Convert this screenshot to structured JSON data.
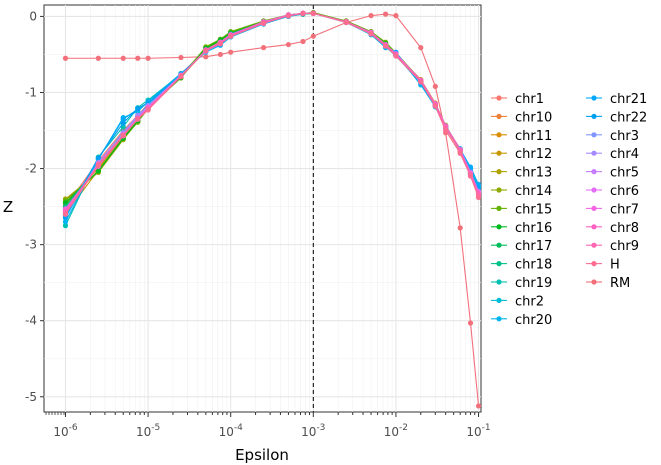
{
  "chart_data": {
    "type": "line",
    "xlabel": "Epsilon",
    "ylabel": "Z",
    "xscale": "log10",
    "xlim": [
      1e-06,
      0.1
    ],
    "ylim": [
      -5.2,
      0.15
    ],
    "grid": true,
    "legend_position": "right",
    "vline": {
      "x": 0.001,
      "style": "dashed"
    },
    "x_ticks": [
      {
        "value": 1e-06,
        "label": "10^-6"
      },
      {
        "value": 1e-05,
        "label": "10^-5"
      },
      {
        "value": 0.0001,
        "label": "10^-4"
      },
      {
        "value": 0.001,
        "label": "10^-3"
      },
      {
        "value": 0.01,
        "label": "10^-2"
      },
      {
        "value": 0.1,
        "label": "10^-1"
      }
    ],
    "y_ticks": [
      0,
      -1,
      -2,
      -3,
      -4,
      -5
    ],
    "x": [
      1e-06,
      2.5e-06,
      5e-06,
      7.5e-06,
      1e-05,
      2.5e-05,
      5e-05,
      7.5e-05,
      0.0001,
      0.00025,
      0.0005,
      0.00075,
      0.001,
      0.0025,
      0.005,
      0.0075,
      0.01,
      0.02,
      0.03,
      0.04,
      0.06,
      0.08,
      0.1
    ],
    "series": [
      {
        "name": "chr1",
        "color": "#F8766D",
        "values": [
          -2.5,
          -1.9,
          -1.5,
          -1.3,
          -1.15,
          -0.75,
          -0.45,
          -0.35,
          -0.25,
          -0.08,
          0.01,
          0.04,
          0.04,
          -0.07,
          -0.22,
          -0.38,
          -0.5,
          -0.84,
          -1.15,
          -1.45,
          -1.75,
          -2.05,
          -2.28
        ]
      },
      {
        "name": "chr10",
        "color": "#EC8239",
        "values": [
          -2.55,
          -1.95,
          -1.55,
          -1.35,
          -1.18,
          -0.78,
          -0.46,
          -0.36,
          -0.26,
          -0.09,
          0.0,
          0.03,
          0.04,
          -0.07,
          -0.23,
          -0.39,
          -0.51,
          -0.85,
          -1.16,
          -1.46,
          -1.76,
          -2.06,
          -2.3
        ]
      },
      {
        "name": "chr11",
        "color": "#DB8E00",
        "values": [
          -2.45,
          -2.0,
          -1.58,
          -1.36,
          -1.2,
          -0.8,
          -0.44,
          -0.34,
          -0.24,
          -0.07,
          0.01,
          0.04,
          0.04,
          -0.06,
          -0.21,
          -0.37,
          -0.49,
          -0.83,
          -1.14,
          -1.44,
          -1.74,
          -2.04,
          -2.29
        ]
      },
      {
        "name": "chr12",
        "color": "#C79800",
        "values": [
          -2.6,
          -2.02,
          -1.6,
          -1.38,
          -1.21,
          -0.79,
          -0.43,
          -0.33,
          -0.23,
          -0.08,
          0.02,
          0.04,
          0.05,
          -0.07,
          -0.22,
          -0.38,
          -0.5,
          -0.86,
          -1.17,
          -1.47,
          -1.77,
          -2.07,
          -2.31
        ]
      },
      {
        "name": "chr13",
        "color": "#AEA200",
        "values": [
          -2.4,
          -2.05,
          -1.62,
          -1.38,
          -1.22,
          -0.8,
          -0.42,
          -0.32,
          -0.22,
          -0.07,
          0.01,
          0.03,
          0.04,
          -0.06,
          -0.2,
          -0.36,
          -0.48,
          -0.84,
          -1.15,
          -1.45,
          -1.75,
          -2.05,
          -2.32
        ]
      },
      {
        "name": "chr14",
        "color": "#8FAA00",
        "values": [
          -2.48,
          -1.98,
          -1.56,
          -1.37,
          -1.19,
          -0.78,
          -0.41,
          -0.31,
          -0.21,
          -0.06,
          0.02,
          0.04,
          0.04,
          -0.06,
          -0.21,
          -0.35,
          -0.49,
          -0.85,
          -1.16,
          -1.44,
          -1.78,
          -2.08,
          -2.3
        ]
      },
      {
        "name": "chr15",
        "color": "#64B200",
        "values": [
          -2.42,
          -2.04,
          -1.61,
          -1.39,
          -1.2,
          -0.81,
          -0.4,
          -0.3,
          -0.2,
          -0.06,
          0.02,
          0.04,
          0.05,
          -0.06,
          -0.2,
          -0.34,
          -0.48,
          -0.84,
          -1.15,
          -1.43,
          -1.76,
          -2.06,
          -2.29
        ]
      },
      {
        "name": "chr16",
        "color": "#00B81F",
        "values": [
          -2.45,
          -2.03,
          -1.6,
          -1.37,
          -1.21,
          -0.8,
          -0.42,
          -0.31,
          -0.22,
          -0.07,
          0.01,
          0.03,
          0.04,
          -0.07,
          -0.22,
          -0.36,
          -0.5,
          -0.85,
          -1.16,
          -1.45,
          -1.77,
          -2.07,
          -2.31
        ]
      },
      {
        "name": "chr17",
        "color": "#00BD5C",
        "values": [
          -2.52,
          -1.97,
          -1.57,
          -1.34,
          -1.18,
          -0.79,
          -0.45,
          -0.34,
          -0.24,
          -0.08,
          0.01,
          0.04,
          0.04,
          -0.07,
          -0.22,
          -0.38,
          -0.5,
          -0.85,
          -1.16,
          -1.45,
          -1.75,
          -2.05,
          -2.3
        ]
      },
      {
        "name": "chr18",
        "color": "#00C08B",
        "values": [
          -2.5,
          -1.96,
          -1.55,
          -1.33,
          -1.17,
          -0.78,
          -0.44,
          -0.34,
          -0.23,
          -0.08,
          0.02,
          0.04,
          0.04,
          -0.07,
          -0.21,
          -0.37,
          -0.51,
          -0.86,
          -1.17,
          -1.46,
          -1.76,
          -2.06,
          -2.3
        ]
      },
      {
        "name": "chr19",
        "color": "#00C0B2",
        "values": [
          -2.75,
          -1.85,
          -1.45,
          -1.2,
          -1.1,
          -0.76,
          -0.46,
          -0.37,
          -0.26,
          -0.09,
          0.01,
          0.04,
          0.04,
          -0.07,
          -0.24,
          -0.4,
          -0.52,
          -0.87,
          -1.18,
          -1.46,
          -1.76,
          -2.03,
          -2.24
        ]
      },
      {
        "name": "chr2",
        "color": "#00BCD4",
        "values": [
          -2.55,
          -1.93,
          -1.52,
          -1.31,
          -1.16,
          -0.77,
          -0.45,
          -0.35,
          -0.25,
          -0.08,
          0.01,
          0.04,
          0.04,
          -0.07,
          -0.22,
          -0.38,
          -0.5,
          -0.85,
          -1.16,
          -1.45,
          -1.75,
          -2.05,
          -2.3
        ]
      },
      {
        "name": "chr20",
        "color": "#00B5EE",
        "values": [
          -2.7,
          -1.88,
          -1.33,
          -1.25,
          -1.12,
          -0.75,
          -0.47,
          -0.38,
          -0.27,
          -0.1,
          0.0,
          0.03,
          0.04,
          -0.08,
          -0.24,
          -0.41,
          -0.49,
          -0.9,
          -1.19,
          -1.47,
          -1.74,
          -2.0,
          -2.22
        ]
      },
      {
        "name": "chr21",
        "color": "#00A9FF",
        "values": [
          -2.65,
          -1.87,
          -1.35,
          -1.22,
          -1.13,
          -0.76,
          -0.46,
          -0.37,
          -0.26,
          -0.09,
          0.01,
          0.04,
          0.04,
          -0.07,
          -0.23,
          -0.4,
          -0.47,
          -0.88,
          -1.18,
          -1.46,
          -1.75,
          -1.98,
          -2.21
        ]
      },
      {
        "name": "chr22",
        "color": "#00A0F0",
        "values": [
          -2.62,
          -1.86,
          -1.4,
          -1.21,
          -1.14,
          -0.77,
          -0.46,
          -0.36,
          -0.26,
          -0.09,
          0.01,
          0.04,
          0.04,
          -0.07,
          -0.23,
          -0.39,
          -0.5,
          -0.86,
          -1.17,
          -1.45,
          -1.76,
          -2.04,
          -2.27
        ]
      },
      {
        "name": "chr3",
        "color": "#7F96FF",
        "values": [
          -2.58,
          -1.94,
          -1.54,
          -1.32,
          -1.17,
          -0.78,
          -0.45,
          -0.35,
          -0.25,
          -0.08,
          0.01,
          0.04,
          0.04,
          -0.07,
          -0.22,
          -0.38,
          -0.5,
          -0.85,
          -1.16,
          -1.45,
          -1.75,
          -2.05,
          -2.3
        ]
      },
      {
        "name": "chr4",
        "color": "#A58AFF",
        "values": [
          -2.6,
          -1.92,
          -1.53,
          -1.3,
          -1.18,
          -0.77,
          -0.46,
          -0.36,
          -0.26,
          -0.09,
          0.01,
          0.04,
          0.04,
          -0.07,
          -0.23,
          -0.39,
          -0.51,
          -0.86,
          -1.17,
          -1.46,
          -1.76,
          -2.06,
          -2.31
        ]
      },
      {
        "name": "chr5",
        "color": "#C77CFF",
        "values": [
          -2.57,
          -1.95,
          -1.55,
          -1.33,
          -1.19,
          -0.78,
          -0.45,
          -0.35,
          -0.25,
          -0.08,
          0.01,
          0.04,
          0.04,
          -0.07,
          -0.22,
          -0.38,
          -0.5,
          -0.85,
          -1.16,
          -1.45,
          -1.75,
          -2.05,
          -2.3
        ]
      },
      {
        "name": "chr6",
        "color": "#E36EF6",
        "values": [
          -2.55,
          -1.96,
          -1.56,
          -1.34,
          -1.2,
          -0.79,
          -0.44,
          -0.34,
          -0.24,
          -0.08,
          0.02,
          0.04,
          0.04,
          -0.07,
          -0.22,
          -0.38,
          -0.5,
          -0.84,
          -1.15,
          -1.44,
          -1.75,
          -2.06,
          -2.32
        ]
      },
      {
        "name": "chr7",
        "color": "#F564E3",
        "values": [
          -2.53,
          -1.97,
          -1.57,
          -1.35,
          -1.21,
          -0.79,
          -0.44,
          -0.34,
          -0.24,
          -0.07,
          0.02,
          0.04,
          0.04,
          -0.07,
          -0.21,
          -0.37,
          -0.49,
          -0.84,
          -1.15,
          -1.44,
          -1.76,
          -2.08,
          -2.33
        ]
      },
      {
        "name": "chr8",
        "color": "#FF61C3",
        "values": [
          -2.56,
          -1.95,
          -1.56,
          -1.34,
          -1.2,
          -0.78,
          -0.45,
          -0.35,
          -0.25,
          -0.08,
          0.01,
          0.04,
          0.04,
          -0.07,
          -0.22,
          -0.38,
          -0.5,
          -0.85,
          -1.16,
          -1.45,
          -1.76,
          -2.07,
          -2.32
        ]
      },
      {
        "name": "chr9",
        "color": "#FF64B0",
        "values": [
          -2.58,
          -1.94,
          -1.56,
          -1.34,
          -1.22,
          -0.78,
          -0.45,
          -0.35,
          -0.26,
          -0.09,
          0.01,
          0.04,
          0.04,
          -0.07,
          -0.22,
          -0.39,
          -0.51,
          -0.86,
          -1.17,
          -1.46,
          -1.77,
          -2.08,
          -2.35
        ]
      },
      {
        "name": "H",
        "color": "#FF6C91",
        "values": [
          -2.6,
          -1.96,
          -1.57,
          -1.35,
          -1.23,
          -0.79,
          -0.45,
          -0.36,
          -0.26,
          -0.09,
          0.01,
          0.04,
          0.04,
          -0.08,
          -0.23,
          -0.39,
          -0.52,
          -0.86,
          -1.18,
          -1.5,
          -1.8,
          -2.1,
          -2.38
        ]
      }
    ],
    "series_rm": {
      "name": "RM",
      "color": "#F2707A",
      "x": [
        1e-06,
        2.5e-06,
        5e-06,
        7.5e-06,
        1e-05,
        2.5e-05,
        5e-05,
        7.5e-05,
        0.0001,
        0.00025,
        0.0005,
        0.00075,
        0.001,
        0.0025,
        0.005,
        0.0075,
        0.01,
        0.02,
        0.03,
        0.04,
        0.06,
        0.08,
        0.1
      ],
      "values": [
        -0.55,
        -0.55,
        -0.55,
        -0.55,
        -0.55,
        -0.54,
        -0.53,
        -0.5,
        -0.47,
        -0.41,
        -0.37,
        -0.33,
        -0.26,
        -0.08,
        0.01,
        0.03,
        0.01,
        -0.41,
        -0.92,
        -1.53,
        -2.78,
        -4.03,
        -5.12
      ]
    }
  }
}
